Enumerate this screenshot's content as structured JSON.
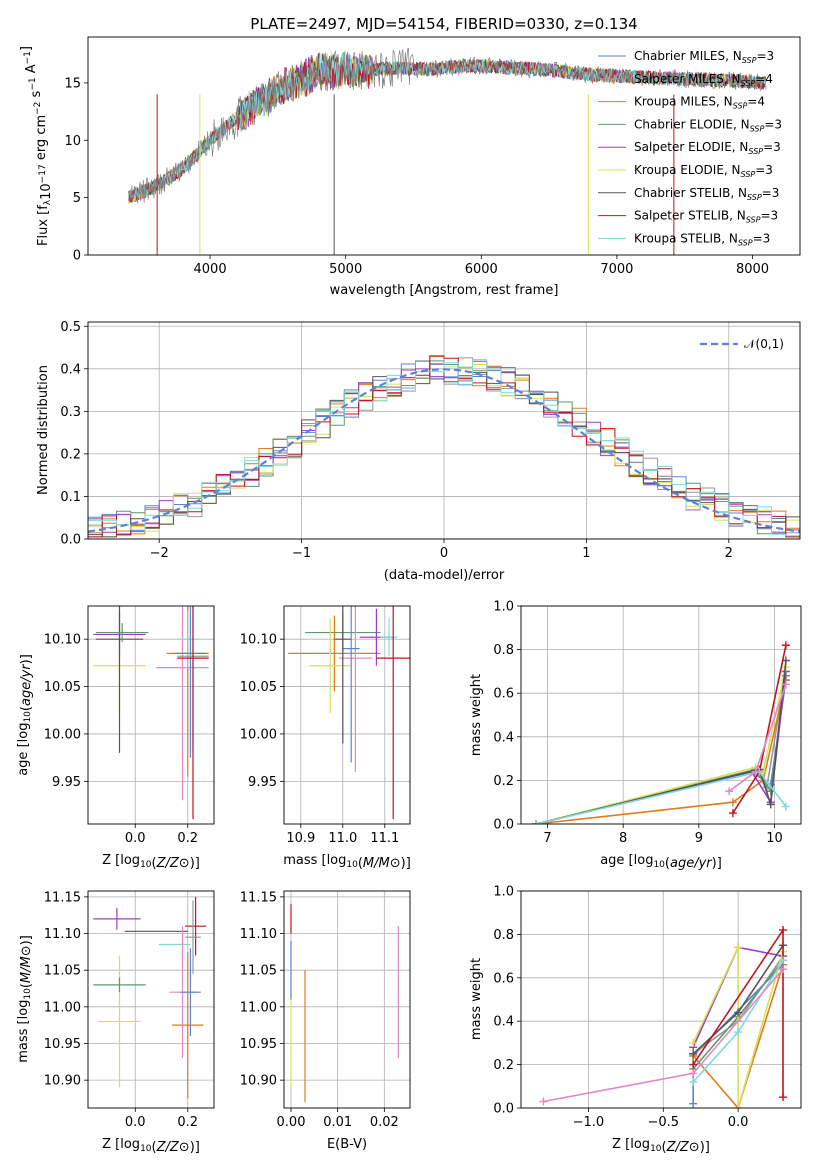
{
  "chart_data": [
    {
      "id": "spectrum",
      "type": "line",
      "title": "PLATE=2497, MJD=54154, FIBERID=0330, z=0.134",
      "xlabel": "wavelength [Angstrom, rest frame]",
      "ylabel_parts": [
        "Flux [f",
        "λ",
        "10",
        "−17",
        " erg cm",
        "−2",
        " s",
        "−1",
        " A",
        "−1",
        "]"
      ],
      "xlim": [
        3100,
        8350
      ],
      "ylim": [
        0,
        19
      ],
      "xticks": [
        4000,
        5000,
        6000,
        7000,
        8000
      ],
      "yticks": [
        0,
        5,
        10,
        15
      ],
      "grid": false,
      "legend_position": "right",
      "series": [
        {
          "name": "Chabrier MILES, N_SSP=3",
          "color": "#5b84d8"
        },
        {
          "name": "Salpeter MILES, N_SSP=4",
          "color": "#9a9a9a"
        },
        {
          "name": "Kroupa MILES, N_SSP=4",
          "color": "#e07b1f"
        },
        {
          "name": "Chabrier ELODIE, N_SSP=3",
          "color": "#5d9a6c"
        },
        {
          "name": "Salpeter ELODIE, N_SSP=3",
          "color": "#a03ec2"
        },
        {
          "name": "Kroupa ELODIE, N_SSP=3",
          "color": "#d8e05a"
        },
        {
          "name": "Chabrier STELIB, N_SSP=3",
          "color": "#555555"
        },
        {
          "name": "Salpeter STELIB, N_SSP=3",
          "color": "#c0161e"
        },
        {
          "name": "Kroupa STELIB, N_SSP=3",
          "color": "#7fd8dc"
        }
      ],
      "data_curve": {
        "color": "#808080",
        "x": [
          3400,
          3600,
          3800,
          4000,
          4200,
          4400,
          4600,
          4800,
          5000,
          5200,
          5400,
          5600,
          5800,
          6000,
          6200,
          6400,
          6600,
          6800,
          7000,
          7200,
          7400,
          7600,
          7800,
          8000,
          8100
        ],
        "y": [
          5,
          6,
          7.5,
          10,
          12,
          13.5,
          15,
          16,
          16,
          16.2,
          16.3,
          16.2,
          16.4,
          16.5,
          16.3,
          16.2,
          16.0,
          15.7,
          15.6,
          15.5,
          15.4,
          15.3,
          15.2,
          15.1,
          15.0
        ]
      }
    },
    {
      "id": "residuals",
      "type": "histogram",
      "xlabel": "(data-model)/error",
      "ylabel": "Normed distribution",
      "xlim": [
        -2.5,
        2.5
      ],
      "ylim": [
        0,
        0.51
      ],
      "xticks": [
        -2,
        -1,
        0,
        1,
        2
      ],
      "yticks": [
        0.0,
        0.1,
        0.2,
        0.3,
        0.4,
        0.5
      ],
      "grid": true,
      "legend_position": "top-right",
      "legend_label": "𝒩(0,1)",
      "bin_width": 0.1,
      "gaussian": {
        "mean": 0,
        "sigma": 1,
        "color": "#5b84d8"
      }
    },
    {
      "id": "age_vs_Z",
      "type": "errorbar",
      "xlabel_parts": [
        "Z [log",
        "10",
        "(",
        "Z/Z",
        "⊙",
        ")]"
      ],
      "ylabel_parts": [
        "age  [log",
        "10",
        "(",
        "age/yr",
        ")]"
      ],
      "xlim": [
        -0.18,
        0.3
      ],
      "ylim": [
        9.905,
        10.135
      ],
      "xticks": [
        "0.0",
        "0.2"
      ],
      "xtick_values": [
        0.0,
        0.2
      ],
      "yticks": [
        "9.95",
        "10.00",
        "10.05",
        "10.10"
      ],
      "ytick_values": [
        9.95,
        10.0,
        10.05,
        10.1
      ],
      "grid": true,
      "points": [
        {
          "x": -0.06,
          "y": 10.105,
          "xerr": 0.1,
          "yerr": 0.025,
          "color": "#a03ec2"
        },
        {
          "x": -0.06,
          "y": 10.072,
          "xerr": 0.1,
          "yerr": 0.05,
          "color": "#d8e05a"
        },
        {
          "x": -0.06,
          "y": 10.1,
          "xerr": 0.09,
          "yerr": 0.12,
          "color": "#555555"
        },
        {
          "x": -0.05,
          "y": 10.107,
          "xerr": 0.1,
          "yerr": 0.01,
          "color": "#5d9a6c"
        },
        {
          "x": 0.2,
          "y": 10.085,
          "xerr": 0.08,
          "yerr": 0.13,
          "color": "#e07b1f"
        },
        {
          "x": 0.18,
          "y": 10.07,
          "xerr": 0.1,
          "yerr": 0.14,
          "color": "#e388c4"
        },
        {
          "x": 0.2,
          "y": 10.1,
          "xerr": 0.04,
          "yerr": 0.03,
          "color": "#7fd8dc"
        },
        {
          "x": 0.21,
          "y": 10.085,
          "xerr": 0.06,
          "yerr": 0.11,
          "color": "#5b84d8"
        },
        {
          "x": 0.22,
          "y": 10.082,
          "xerr": 0.06,
          "yerr": 0.1,
          "color": "#9a9a9a"
        },
        {
          "x": 0.22,
          "y": 10.08,
          "xerr": 0.06,
          "yerr": 0.17,
          "color": "#c0161e"
        }
      ]
    },
    {
      "id": "age_vs_mass",
      "type": "errorbar",
      "xlabel_parts": [
        "mass [log",
        "10",
        "(",
        "M/M",
        "⊙",
        ")]"
      ],
      "ylabel": "",
      "xlim": [
        10.86,
        11.16
      ],
      "ylim": [
        9.905,
        10.135
      ],
      "xticks": [
        "10.9",
        "11.0",
        "11.1"
      ],
      "xtick_values": [
        10.9,
        11.0,
        11.1
      ],
      "yticks": [
        "9.95",
        "10.00",
        "10.05",
        "10.10"
      ],
      "ytick_values": [
        9.95,
        10.0,
        10.05,
        10.1
      ],
      "grid": true,
      "points": [
        {
          "x": 11.0,
          "y": 10.107,
          "xerr": 0.09,
          "yerr": 0.02,
          "color": "#5d9a6c"
        },
        {
          "x": 10.98,
          "y": 10.085,
          "xerr": 0.11,
          "yerr": 0.04,
          "color": "#e07b1f"
        },
        {
          "x": 10.97,
          "y": 10.072,
          "xerr": 0.05,
          "yerr": 0.05,
          "color": "#d8e05a"
        },
        {
          "x": 11.03,
          "y": 10.08,
          "xerr": 0.04,
          "yerr": 0.12,
          "color": "#e388c4"
        },
        {
          "x": 11.02,
          "y": 10.09,
          "xerr": 0.02,
          "yerr": 0.12,
          "color": "#5b84d8"
        },
        {
          "x": 11.08,
          "y": 10.102,
          "xerr": 0.04,
          "yerr": 0.03,
          "color": "#a03ec2"
        },
        {
          "x": 11.11,
          "y": 10.102,
          "xerr": 0.02,
          "yerr": 0.02,
          "color": "#7fd8dc"
        },
        {
          "x": 11.12,
          "y": 10.08,
          "xerr": 0.04,
          "yerr": 0.17,
          "color": "#c0161e"
        },
        {
          "x": 11.0,
          "y": 10.1,
          "xerr": 0.02,
          "yerr": 0.11,
          "color": "#555555"
        }
      ]
    },
    {
      "id": "weight_vs_age",
      "type": "line",
      "xlabel_parts": [
        "age  [log",
        "10",
        "(",
        "age/yr",
        ")]"
      ],
      "ylabel": "mass weight",
      "xlim": [
        6.65,
        10.35
      ],
      "ylim": [
        0,
        1.0
      ],
      "xticks": [
        "7",
        "8",
        "9",
        "10"
      ],
      "xtick_values": [
        7,
        8,
        9,
        10
      ],
      "yticks": [
        "0.0",
        "0.2",
        "0.4",
        "0.6",
        "0.8",
        "1.0"
      ],
      "ytick_values": [
        0,
        0.2,
        0.4,
        0.6,
        0.8,
        1.0
      ],
      "grid": true,
      "series": [
        {
          "color": "#5b84d8",
          "x": [
            6.85,
            9.7,
            9.95,
            10.15
          ],
          "y": [
            0.0,
            0.24,
            0.18,
            0.66
          ]
        },
        {
          "color": "#9a9a9a",
          "x": [
            6.85,
            9.75,
            9.9,
            10.15
          ],
          "y": [
            0.0,
            0.25,
            0.17,
            0.7
          ]
        },
        {
          "color": "#e07b1f",
          "x": [
            6.85,
            9.45,
            9.85,
            10.15
          ],
          "y": [
            0.0,
            0.1,
            0.2,
            0.66
          ]
        },
        {
          "color": "#5d9a6c",
          "x": [
            6.85,
            9.75,
            9.95,
            10.15
          ],
          "y": [
            0.0,
            0.25,
            0.15,
            0.68
          ]
        },
        {
          "color": "#a03ec2",
          "x": [
            6.85,
            9.7,
            9.95,
            10.15
          ],
          "y": [
            0.0,
            0.24,
            0.1,
            0.7
          ]
        },
        {
          "color": "#d8e05a",
          "x": [
            6.85,
            9.75,
            9.85,
            10.15
          ],
          "y": [
            0.0,
            0.26,
            0.24,
            0.72
          ]
        },
        {
          "color": "#555555",
          "x": [
            6.85,
            9.8,
            9.95,
            10.15
          ],
          "y": [
            0.0,
            0.25,
            0.09,
            0.75
          ]
        },
        {
          "color": "#c0161e",
          "x": [
            9.45,
            9.8,
            10.15
          ],
          "y": [
            0.05,
            0.24,
            0.82
          ]
        },
        {
          "color": "#7fd8dc",
          "x": [
            6.85,
            9.8,
            10.15
          ],
          "y": [
            0.0,
            0.24,
            0.08
          ]
        },
        {
          "color": "#e388c4",
          "x": [
            9.4,
            9.75,
            10.15
          ],
          "y": [
            0.15,
            0.24,
            0.64
          ]
        }
      ]
    },
    {
      "id": "mass_vs_Z",
      "type": "errorbar",
      "xlabel_parts": [
        "Z [log",
        "10",
        "(",
        "Z/Z",
        "⊙",
        ")]"
      ],
      "ylabel_parts": [
        "mass [log",
        "10",
        "(",
        "M/M",
        "⊙",
        ")]"
      ],
      "xlim": [
        -0.18,
        0.3
      ],
      "ylim": [
        10.862,
        11.158
      ],
      "xticks": [
        "0.0",
        "0.2"
      ],
      "xtick_values": [
        0.0,
        0.2
      ],
      "yticks": [
        "10.90",
        "10.95",
        "11.00",
        "11.05",
        "11.10",
        "11.15"
      ],
      "ytick_values": [
        10.9,
        10.95,
        11.0,
        11.05,
        11.1,
        11.15
      ],
      "grid": true,
      "points": [
        {
          "x": -0.07,
          "y": 11.12,
          "xerr": 0.09,
          "yerr": 0.015,
          "color": "#a03ec2"
        },
        {
          "x": -0.06,
          "y": 10.98,
          "xerr": 0.08,
          "yerr": 0.09,
          "color": "#d8e05a"
        },
        {
          "x": -0.06,
          "y": 11.03,
          "xerr": 0.1,
          "yerr": 0.01,
          "color": "#5d9a6c"
        },
        {
          "x": 0.08,
          "y": 11.103,
          "xerr": 0.12,
          "yerr": 0.0,
          "color": "#555555"
        },
        {
          "x": 0.15,
          "y": 11.085,
          "xerr": 0.06,
          "yerr": 0.0,
          "color": "#7fd8dc"
        },
        {
          "x": 0.2,
          "y": 10.975,
          "xerr": 0.06,
          "yerr": 0.1,
          "color": "#e07b1f"
        },
        {
          "x": 0.18,
          "y": 11.02,
          "xerr": 0.05,
          "yerr": 0.09,
          "color": "#e388c4"
        },
        {
          "x": 0.21,
          "y": 11.02,
          "xerr": 0.04,
          "yerr": 0.06,
          "color": "#5b84d8"
        },
        {
          "x": 0.23,
          "y": 11.11,
          "xerr": 0.04,
          "yerr": 0.04,
          "color": "#c0161e"
        },
        {
          "x": 0.22,
          "y": 11.095,
          "xerr": 0.03,
          "yerr": 0.05,
          "color": "#9a9a9a"
        }
      ]
    },
    {
      "id": "mass_vs_ebv",
      "type": "errorbar",
      "xlabel": "E(B-V)",
      "ylabel": "",
      "xlim": [
        -0.0015,
        0.0255
      ],
      "ylim": [
        10.862,
        11.158
      ],
      "xticks": [
        "0.00",
        "0.01",
        "0.02"
      ],
      "xtick_values": [
        0.0,
        0.01,
        0.02
      ],
      "yticks": [
        "10.90",
        "10.95",
        "11.00",
        "11.05",
        "11.10",
        "11.15"
      ],
      "ytick_values": [
        10.9,
        10.95,
        11.0,
        11.05,
        11.1,
        11.15
      ],
      "grid": true,
      "points": [
        {
          "x": 0.0,
          "y": 11.12,
          "xerr": 0,
          "yerr": 0.02,
          "color": "#c0161e"
        },
        {
          "x": 0.0,
          "y": 11.05,
          "xerr": 0,
          "yerr": 0.04,
          "color": "#5b84d8"
        },
        {
          "x": 0.0,
          "y": 10.95,
          "xerr": 0,
          "yerr": 0.06,
          "color": "#d8e05a"
        },
        {
          "x": 0.003,
          "y": 10.96,
          "xerr": 0,
          "yerr": 0.09,
          "color": "#e07b1f"
        },
        {
          "x": 0.023,
          "y": 11.02,
          "xerr": 0,
          "yerr": 0.09,
          "color": "#e388c4"
        }
      ]
    },
    {
      "id": "weight_vs_Z",
      "type": "line",
      "xlabel_parts": [
        "Z [log",
        "10",
        "(",
        "Z/Z",
        "⊙",
        ")]"
      ],
      "ylabel": "mass weight",
      "xlim": [
        -1.45,
        0.42
      ],
      "ylim": [
        0,
        1.0
      ],
      "xticks": [
        "−1.0",
        "−0.5",
        "0.0"
      ],
      "xtick_values": [
        -1.0,
        -0.5,
        0.0
      ],
      "yticks": [
        "0.0",
        "0.2",
        "0.4",
        "0.6",
        "0.8",
        "1.0"
      ],
      "ytick_values": [
        0,
        0.2,
        0.4,
        0.6,
        0.8,
        1.0
      ],
      "grid": true,
      "series": [
        {
          "color": "#5b84d8",
          "x": [
            -0.3,
            -0.3,
            0.3
          ],
          "y": [
            0.02,
            0.24,
            0.66
          ]
        },
        {
          "color": "#9a9a9a",
          "x": [
            -0.3,
            0.0,
            0.3
          ],
          "y": [
            0.25,
            0.4,
            0.7
          ]
        },
        {
          "color": "#e07b1f",
          "x": [
            -0.3,
            0.0,
            0.3
          ],
          "y": [
            0.24,
            0.0,
            0.66
          ]
        },
        {
          "color": "#5d9a6c",
          "x": [
            -0.3,
            0.0,
            0.3
          ],
          "y": [
            0.18,
            0.42,
            0.68
          ]
        },
        {
          "color": "#a03ec2",
          "x": [
            -0.3,
            0.0,
            0.3
          ],
          "y": [
            0.28,
            0.74,
            0.7
          ]
        },
        {
          "color": "#d8e05a",
          "x": [
            -0.3,
            0.0,
            0.0,
            0.3
          ],
          "y": [
            0.3,
            0.74,
            0.0,
            0.72
          ]
        },
        {
          "color": "#555555",
          "x": [
            -0.3,
            0.0,
            0.3
          ],
          "y": [
            0.25,
            0.44,
            0.75
          ]
        },
        {
          "color": "#c0161e",
          "x": [
            -0.3,
            0.3,
            0.3
          ],
          "y": [
            0.2,
            0.82,
            0.05
          ]
        },
        {
          "color": "#7fd8dc",
          "x": [
            -0.3,
            0.0,
            0.3
          ],
          "y": [
            0.12,
            0.35,
            0.68
          ]
        },
        {
          "color": "#e388c4",
          "x": [
            -1.3,
            -0.3,
            0.3
          ],
          "y": [
            0.03,
            0.16,
            0.64
          ]
        }
      ]
    }
  ]
}
